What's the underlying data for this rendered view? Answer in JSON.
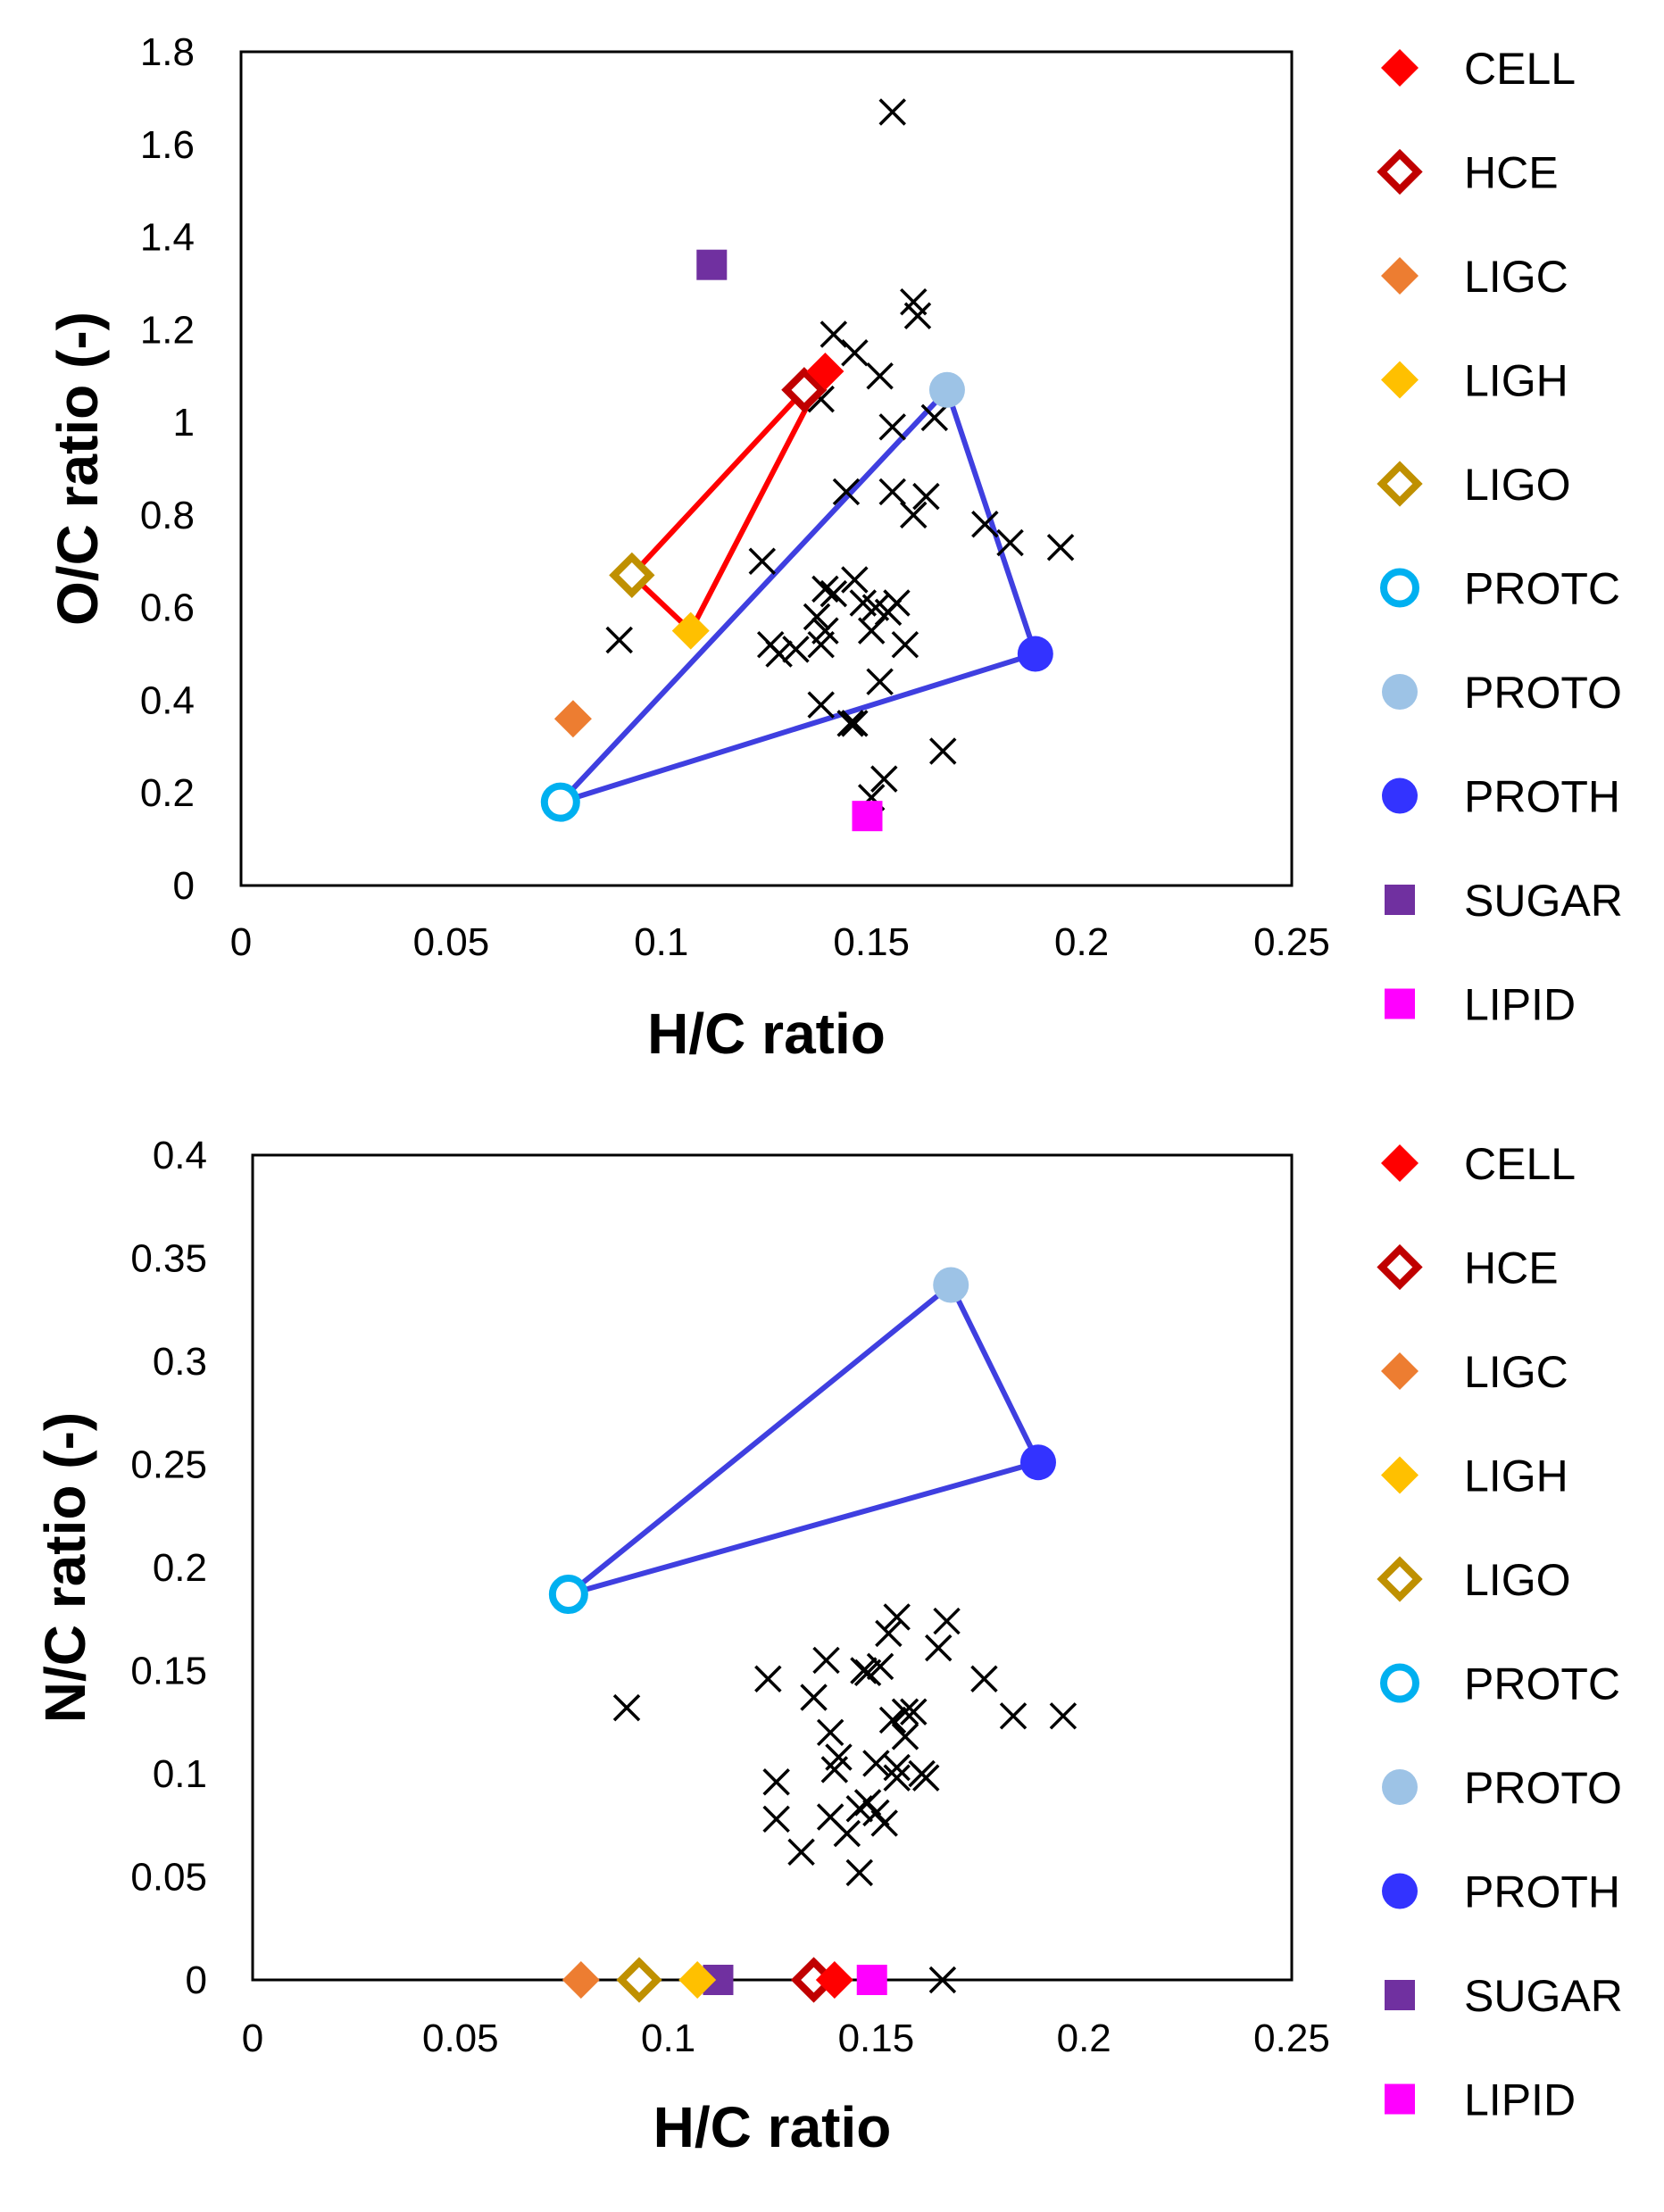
{
  "colors": {
    "CELL": "#ff0000",
    "HCE": "#c00000",
    "LIGC": "#ed7d31",
    "LIGH": "#ffc000",
    "LIGO": "#bf9000",
    "PROTC": "#00b0f0",
    "PROTO": "#9dc3e6",
    "PROTH": "#3333ff",
    "SUGAR": "#7030a0",
    "LIPID": "#ff00ff",
    "red_line": "#ff0000",
    "blue_line": "#3f3fe0",
    "data_marker": "#000000"
  },
  "legend": [
    {
      "key": "CELL",
      "label": "CELL",
      "marker": "diamond-filled"
    },
    {
      "key": "HCE",
      "label": "HCE",
      "marker": "diamond-open"
    },
    {
      "key": "LIGC",
      "label": "LIGC",
      "marker": "diamond-filled"
    },
    {
      "key": "LIGH",
      "label": "LIGH",
      "marker": "diamond-filled"
    },
    {
      "key": "LIGO",
      "label": "LIGO",
      "marker": "diamond-open"
    },
    {
      "key": "PROTC",
      "label": "PROTC",
      "marker": "circle-open"
    },
    {
      "key": "PROTO",
      "label": "PROTO",
      "marker": "circle-filled"
    },
    {
      "key": "PROTH",
      "label": "PROTH",
      "marker": "circle-filled"
    },
    {
      "key": "SUGAR",
      "label": "SUGAR",
      "marker": "square-filled"
    },
    {
      "key": "LIPID",
      "label": "LIPID",
      "marker": "square-filled"
    }
  ],
  "chart_data": [
    {
      "type": "scatter",
      "title": "",
      "xlabel": "H/C ratio",
      "ylabel": "O/C ratio (-)",
      "xlim": [
        0,
        0.25
      ],
      "ylim": [
        0,
        1.8
      ],
      "xticks": [
        0,
        0.05,
        0.1,
        0.15,
        0.2,
        0.25
      ],
      "xtick_labels": [
        "0",
        "0.05",
        "0.1",
        "0.15",
        "0.2",
        "0.25"
      ],
      "yticks": [
        0,
        0.2,
        0.4,
        0.6,
        0.8,
        1.0,
        1.2,
        1.4,
        1.6,
        1.8
      ],
      "ytick_labels": [
        "0",
        "0.2",
        "0.4",
        "0.6",
        "0.8",
        "1",
        "1.2",
        "1.4",
        "1.6",
        "1.8"
      ],
      "grid": false,
      "legend_position": "right",
      "references": [
        {
          "key": "CELL",
          "x": 0.139,
          "y": 1.11
        },
        {
          "key": "HCE",
          "x": 0.134,
          "y": 1.07
        },
        {
          "key": "LIGC",
          "x": 0.079,
          "y": 0.36
        },
        {
          "key": "LIGH",
          "x": 0.107,
          "y": 0.55
        },
        {
          "key": "LIGO",
          "x": 0.093,
          "y": 0.67
        },
        {
          "key": "PROTC",
          "x": 0.076,
          "y": 0.18
        },
        {
          "key": "PROTO",
          "x": 0.168,
          "y": 1.07
        },
        {
          "key": "PROTH",
          "x": 0.189,
          "y": 0.5
        },
        {
          "key": "SUGAR",
          "x": 0.112,
          "y": 1.34
        },
        {
          "key": "LIPID",
          "x": 0.149,
          "y": 0.15
        }
      ],
      "polygons": [
        {
          "color_key": "red_line",
          "points": [
            "LIGO",
            "HCE",
            "CELL",
            "LIGH",
            "LIGO"
          ]
        },
        {
          "color_key": "blue_line",
          "points": [
            "PROTC",
            "PROTO",
            "PROTH",
            "PROTC"
          ]
        }
      ],
      "samples_x": [
        0.155,
        0.16,
        0.161,
        0.141,
        0.146,
        0.152,
        0.138,
        0.155,
        0.165,
        0.144,
        0.155,
        0.163,
        0.16,
        0.177,
        0.183,
        0.195,
        0.124,
        0.09,
        0.139,
        0.141,
        0.146,
        0.148,
        0.137,
        0.151,
        0.154,
        0.156,
        0.138,
        0.15,
        0.158,
        0.126,
        0.128,
        0.132,
        0.139,
        0.152,
        0.138,
        0.145,
        0.146,
        0.167,
        0.153,
        0.15
      ],
      "samples_y": [
        1.67,
        1.26,
        1.23,
        1.19,
        1.15,
        1.1,
        1.05,
        0.99,
        1.01,
        0.85,
        0.85,
        0.84,
        0.8,
        0.78,
        0.74,
        0.73,
        0.7,
        0.53,
        0.64,
        0.63,
        0.66,
        0.61,
        0.58,
        0.6,
        0.59,
        0.61,
        0.52,
        0.55,
        0.52,
        0.52,
        0.5,
        0.51,
        0.55,
        0.44,
        0.39,
        0.35,
        0.35,
        0.29,
        0.23,
        0.19
      ]
    },
    {
      "type": "scatter",
      "title": "",
      "xlabel": "H/C ratio",
      "ylabel": "N/C ratio (-)",
      "xlim": [
        0,
        0.25
      ],
      "ylim": [
        0,
        0.4
      ],
      "xticks": [
        0,
        0.05,
        0.1,
        0.15,
        0.2,
        0.25
      ],
      "xtick_labels": [
        "0",
        "0.05",
        "0.1",
        "0.15",
        "0.2",
        "0.25"
      ],
      "yticks": [
        0,
        0.05,
        0.1,
        0.15,
        0.2,
        0.25,
        0.3,
        0.35,
        0.4
      ],
      "ytick_labels": [
        "0",
        "0.05",
        "0.1",
        "0.15",
        "0.2",
        "0.25",
        "0.3",
        "0.35",
        "0.4"
      ],
      "grid": false,
      "legend_position": "right",
      "references": [
        {
          "key": "CELL",
          "x": 0.14,
          "y": 0
        },
        {
          "key": "HCE",
          "x": 0.135,
          "y": 0
        },
        {
          "key": "LIGC",
          "x": 0.079,
          "y": 0
        },
        {
          "key": "LIGH",
          "x": 0.107,
          "y": 0
        },
        {
          "key": "LIGO",
          "x": 0.093,
          "y": 0
        },
        {
          "key": "PROTC",
          "x": 0.076,
          "y": 0.187
        },
        {
          "key": "PROTO",
          "x": 0.168,
          "y": 0.337
        },
        {
          "key": "PROTH",
          "x": 0.189,
          "y": 0.251
        },
        {
          "key": "SUGAR",
          "x": 0.112,
          "y": 0
        },
        {
          "key": "LIPID",
          "x": 0.149,
          "y": 0
        }
      ],
      "polygons": [
        {
          "color_key": "blue_line",
          "points": [
            "PROTC",
            "PROTO",
            "PROTH",
            "PROTC"
          ]
        }
      ],
      "samples_x": [
        0.155,
        0.167,
        0.153,
        0.165,
        0.151,
        0.138,
        0.147,
        0.148,
        0.124,
        0.176,
        0.135,
        0.157,
        0.183,
        0.195,
        0.09,
        0.159,
        0.154,
        0.139,
        0.157,
        0.141,
        0.15,
        0.155,
        0.14,
        0.161,
        0.162,
        0.155,
        0.126,
        0.148,
        0.15,
        0.146,
        0.139,
        0.126,
        0.152,
        0.143,
        0.132,
        0.146,
        0.166
      ],
      "samples_y": [
        0.176,
        0.174,
        0.168,
        0.161,
        0.152,
        0.155,
        0.15,
        0.149,
        0.146,
        0.146,
        0.137,
        0.13,
        0.128,
        0.128,
        0.132,
        0.13,
        0.126,
        0.12,
        0.118,
        0.108,
        0.105,
        0.103,
        0.102,
        0.1,
        0.098,
        0.098,
        0.096,
        0.086,
        0.081,
        0.083,
        0.079,
        0.078,
        0.076,
        0.071,
        0.062,
        0.052,
        0.0
      ]
    }
  ]
}
